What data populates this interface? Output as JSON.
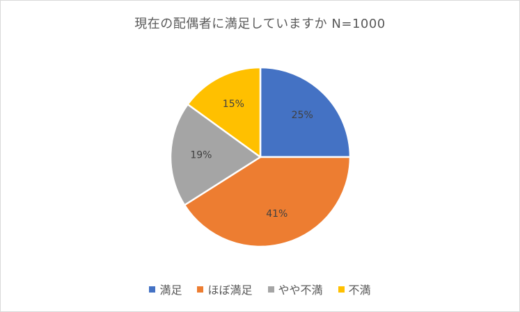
{
  "chart_data": {
    "type": "pie",
    "title": "現在の配偶者に満足していますか N=1000",
    "categories": [
      "満足",
      "ほぼ満足",
      "やや不満",
      "不満"
    ],
    "values": [
      25,
      41,
      19,
      15
    ],
    "data_labels": [
      "25%",
      "41%",
      "19%",
      "15%"
    ],
    "colors": [
      "#4472C4",
      "#ED7D31",
      "#A5A5A5",
      "#FFC000"
    ],
    "start_angle": "12 o'clock",
    "direction": "clockwise",
    "legend_position": "bottom"
  }
}
